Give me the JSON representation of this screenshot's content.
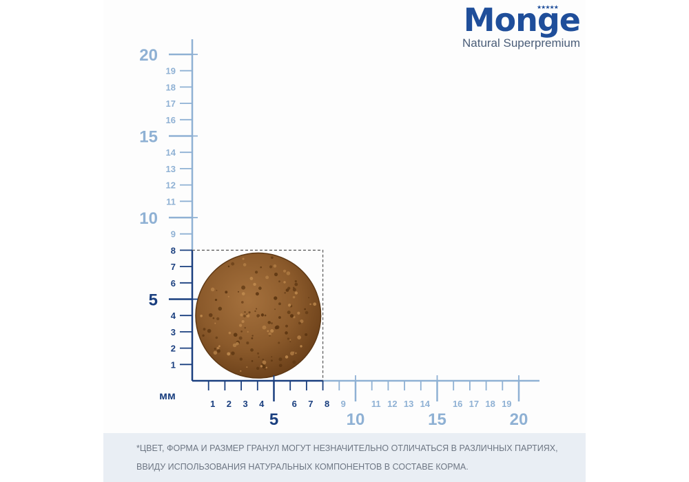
{
  "brand": {
    "name": "Monge",
    "tagline": "Natural Superpremium",
    "stars": "★★★★★"
  },
  "scale": {
    "unit_label": "мм",
    "y_ticks": [
      {
        "value": 1,
        "label": "1"
      },
      {
        "value": 2,
        "label": "2"
      },
      {
        "value": 3,
        "label": "3"
      },
      {
        "value": 4,
        "label": "4"
      },
      {
        "value": 5,
        "label": "5"
      },
      {
        "value": 6,
        "label": "6"
      },
      {
        "value": 7,
        "label": "7"
      },
      {
        "value": 8,
        "label": "8"
      },
      {
        "value": 9,
        "label": "9"
      },
      {
        "value": 10,
        "label": "10"
      },
      {
        "value": 11,
        "label": "11"
      },
      {
        "value": 12,
        "label": "12"
      },
      {
        "value": 13,
        "label": "13"
      },
      {
        "value": 14,
        "label": "14"
      },
      {
        "value": 15,
        "label": "15"
      },
      {
        "value": 16,
        "label": "16"
      },
      {
        "value": 17,
        "label": "17"
      },
      {
        "value": 18,
        "label": "18"
      },
      {
        "value": 19,
        "label": "19"
      },
      {
        "value": 20,
        "label": "20"
      }
    ],
    "x_ticks": [
      {
        "value": 1,
        "label": "1"
      },
      {
        "value": 2,
        "label": "2"
      },
      {
        "value": 3,
        "label": "3"
      },
      {
        "value": 4,
        "label": "4"
      },
      {
        "value": 5,
        "label": "5"
      },
      {
        "value": 6,
        "label": "6"
      },
      {
        "value": 7,
        "label": "7"
      },
      {
        "value": 8,
        "label": "8"
      },
      {
        "value": 9,
        "label": "9"
      },
      {
        "value": 10,
        "label": "10"
      },
      {
        "value": 11,
        "label": "11"
      },
      {
        "value": 12,
        "label": "12"
      },
      {
        "value": 13,
        "label": "13"
      },
      {
        "value": 14,
        "label": "14"
      },
      {
        "value": 15,
        "label": "15"
      },
      {
        "value": 16,
        "label": "16"
      },
      {
        "value": 17,
        "label": "17"
      },
      {
        "value": 18,
        "label": "18"
      },
      {
        "value": 19,
        "label": "19"
      },
      {
        "value": 20,
        "label": "20"
      }
    ],
    "axis_max": 20,
    "kibble_size_mm": 8,
    "highlight_color": "#1a3f7f",
    "scale_color": "#8fb1d4",
    "kibble_color": "#8b5a2b"
  },
  "footer": {
    "line1": "*ЦВЕТ, ФОРМА И РАЗМЕР ГРАНУЛ МОГУТ НЕЗНАЧИТЕЛЬНО ОТЛИЧАТЬСЯ В РАЗЛИЧНЫХ ПАРТИЯХ,",
    "line2": "ВВИДУ ИСПОЛЬЗОВАНИЯ НАТУРАЛЬНЫХ КОМПОНЕНТОВ В СОСТАВЕ КОРМА."
  }
}
